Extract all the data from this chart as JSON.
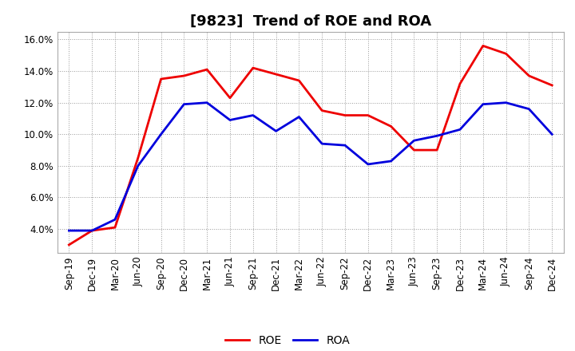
{
  "title": "[9823]  Trend of ROE and ROA",
  "x_labels": [
    "Sep-19",
    "Dec-19",
    "Mar-20",
    "Jun-20",
    "Sep-20",
    "Dec-20",
    "Mar-21",
    "Jun-21",
    "Sep-21",
    "Dec-21",
    "Mar-22",
    "Jun-22",
    "Sep-22",
    "Dec-22",
    "Mar-23",
    "Jun-23",
    "Sep-23",
    "Dec-23",
    "Mar-24",
    "Jun-24",
    "Sep-24",
    "Dec-24"
  ],
  "roe": [
    3.0,
    3.9,
    4.1,
    8.5,
    13.5,
    13.7,
    14.1,
    12.3,
    14.2,
    13.8,
    13.4,
    11.5,
    11.2,
    11.2,
    10.5,
    9.0,
    9.0,
    13.2,
    15.6,
    15.1,
    13.7,
    13.1
  ],
  "roa": [
    3.9,
    3.9,
    4.6,
    8.0,
    10.0,
    11.9,
    12.0,
    10.9,
    11.2,
    10.2,
    11.1,
    9.4,
    9.3,
    8.1,
    8.3,
    9.6,
    9.9,
    10.3,
    11.9,
    12.0,
    11.6,
    10.0
  ],
  "roe_color": "#ee0000",
  "roa_color": "#0000dd",
  "background_color": "#ffffff",
  "plot_bg_color": "#ffffff",
  "grid_color": "#999999",
  "ylim": [
    2.5,
    16.5
  ],
  "yticks": [
    4.0,
    6.0,
    8.0,
    10.0,
    12.0,
    14.0,
    16.0
  ],
  "legend_roe": "ROE",
  "legend_roa": "ROA",
  "title_fontsize": 13,
  "axis_fontsize": 8.5,
  "legend_fontsize": 10,
  "line_width": 2.0
}
